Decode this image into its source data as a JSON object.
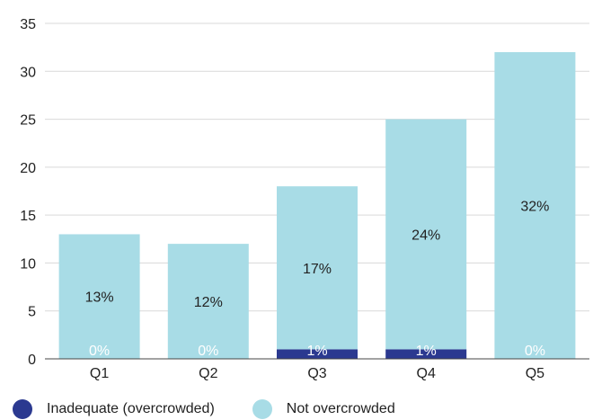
{
  "chart_data": {
    "type": "bar",
    "stacked": true,
    "categories": [
      "Q1",
      "Q2",
      "Q3",
      "Q4",
      "Q5"
    ],
    "series": [
      {
        "name": "Inadequate (overcrowded)",
        "color": "#2B3990",
        "values": [
          0,
          0,
          1,
          1,
          0
        ],
        "labels": [
          "0%",
          "0%",
          "1%",
          "1%",
          "0%"
        ]
      },
      {
        "name": "Not overcrowded",
        "color": "#A8DCE6",
        "values": [
          13,
          12,
          17,
          24,
          32
        ],
        "labels": [
          "13%",
          "12%",
          "17%",
          "24%",
          "32%"
        ]
      }
    ],
    "ylim": [
      0,
      35
    ],
    "yticks": [
      0,
      5,
      10,
      15,
      20,
      25,
      30,
      35
    ],
    "grid": true,
    "legend_position": "bottom-left",
    "title": "",
    "xlabel": "",
    "ylabel": ""
  }
}
